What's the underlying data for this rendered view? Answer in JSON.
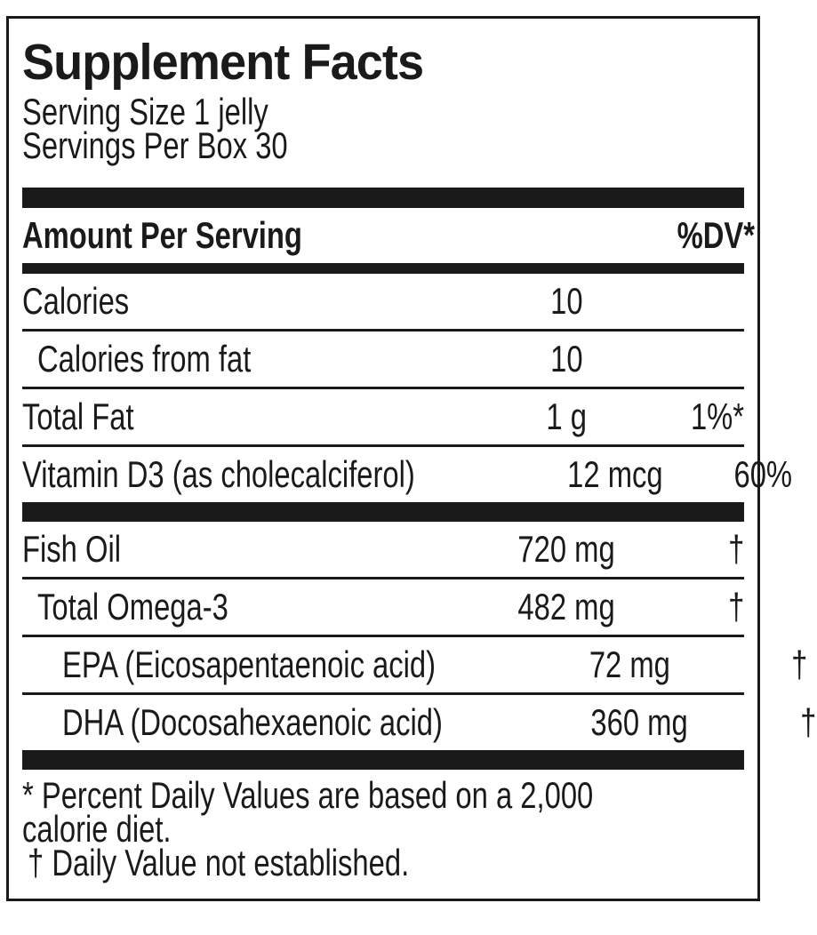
{
  "label": {
    "title": "Supplement Facts",
    "serving_size": "Serving Size 1 jelly",
    "servings_per_box": "Servings Per Box 30",
    "columns": {
      "amount_header": "Amount Per Serving",
      "dv_header": "%DV*"
    },
    "rows": [
      {
        "name": "Calories",
        "amount": "10",
        "dv": ""
      },
      {
        "name": "Calories from fat",
        "amount": "10",
        "dv": ""
      },
      {
        "name": "Total Fat",
        "amount": "1 g",
        "dv": "1%*"
      },
      {
        "name": "Vitamin D3 (as cholecalciferol)",
        "amount": "12 mcg",
        "dv": "60%"
      },
      {
        "name": "Fish Oil",
        "amount": "720 mg",
        "dv": "†"
      },
      {
        "name": "Total Omega-3",
        "amount": "482 mg",
        "dv": "†"
      },
      {
        "name": "EPA (Eicosapentaenoic acid)",
        "amount": "72 mg",
        "dv": "†"
      },
      {
        "name": "DHA (Docosahexaenoic acid)",
        "amount": "360 mg",
        "dv": "†"
      }
    ],
    "footnotes": {
      "dv_line1": "* Percent Daily Values are based on a 2,000",
      "dv_line2": "calorie diet.",
      "dagger": "† Daily Value not established."
    },
    "colors": {
      "ink": "#1a1a1a",
      "background": "#ffffff"
    }
  }
}
